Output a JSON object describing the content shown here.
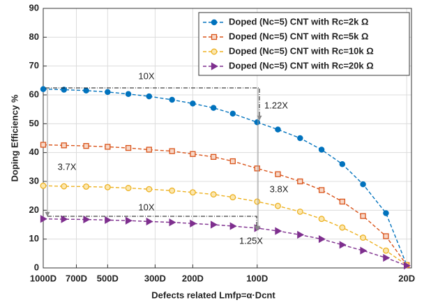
{
  "chart_data": {
    "type": "line",
    "xlabel": "Defects related Lmfp=α·Dcnt",
    "ylabel": "Doping Efficiency %",
    "xscale": "log",
    "x_reversed": true,
    "x": [
      1000,
      800,
      630,
      500,
      400,
      320,
      250,
      200,
      160,
      130,
      100,
      80,
      63,
      50,
      40,
      32,
      25,
      20
    ],
    "series": [
      {
        "name": "Doped (Nc=5) CNT with Rc=2k Ω",
        "color": "#0072BD",
        "marker": "circle",
        "values": [
          62,
          61.8,
          61.5,
          61,
          60.3,
          59.5,
          58.3,
          57,
          55.5,
          53.5,
          50.5,
          48,
          45,
          41,
          36,
          29,
          19,
          1
        ]
      },
      {
        "name": "Doped (Nc=5) CNT with Rc=5k Ω",
        "color": "#D95319",
        "marker": "square",
        "values": [
          42.7,
          42.5,
          42.3,
          42,
          41.6,
          41,
          40.5,
          39.5,
          38.5,
          37,
          34.5,
          32.5,
          30,
          27,
          23,
          18,
          11,
          1
        ]
      },
      {
        "name": "Doped (Nc=5) CNT with Rc=10k Ω",
        "color": "#EDB120",
        "marker": "open-circle",
        "values": [
          28.5,
          28.3,
          28.2,
          28,
          27.7,
          27.3,
          26.8,
          26.2,
          25.5,
          24.5,
          23,
          21.5,
          19.5,
          17,
          14,
          10.5,
          6,
          1
        ]
      },
      {
        "name": "Doped (Nc=5) CNT with Rc=20k Ω",
        "color": "#7E2F8E",
        "marker": "triangle-right",
        "values": [
          17,
          16.9,
          16.8,
          16.6,
          16.4,
          16.1,
          15.8,
          15.4,
          15,
          14.5,
          13.8,
          12.8,
          11.5,
          10,
          8,
          6,
          3.5,
          0.8
        ]
      }
    ],
    "xlim": [
      1000,
      19
    ],
    "xticks": [
      {
        "value": 1000,
        "label": "1000D"
      },
      {
        "value": 700,
        "label": "700D"
      },
      {
        "value": 500,
        "label": "500D"
      },
      {
        "value": 300,
        "label": "300D"
      },
      {
        "value": 200,
        "label": "200D"
      },
      {
        "value": 100,
        "label": "100D"
      },
      {
        "value": 20,
        "label": "20D"
      }
    ],
    "ylim": [
      0,
      90
    ],
    "yticks": [
      0,
      10,
      20,
      30,
      40,
      50,
      60,
      70,
      80,
      90
    ],
    "grid": true,
    "legend": "upper right",
    "annotations": [
      "10X",
      "1.22X",
      "3.7X",
      "3.8X",
      "10X",
      "1.25X"
    ]
  }
}
